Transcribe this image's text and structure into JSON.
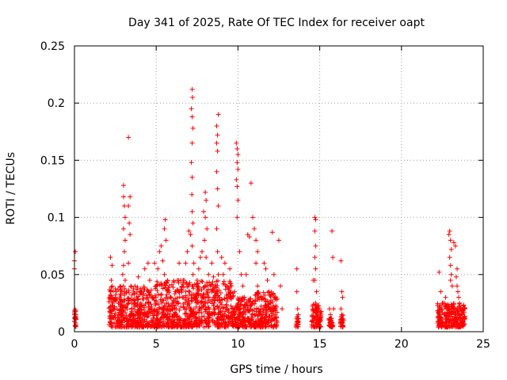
{
  "chart_data": {
    "type": "scatter",
    "title": "Day 341 of 2025, Rate Of TEC Index for receiver oapt",
    "xlabel": "GPS time / hours",
    "ylabel": "ROTI / TECUs",
    "xlim": [
      0,
      25
    ],
    "ylim": [
      0,
      0.25
    ],
    "x_ticks": [
      0,
      5,
      10,
      15,
      20,
      25
    ],
    "x_tick_labels": [
      "0",
      "5",
      "10",
      "15",
      "20",
      "25"
    ],
    "y_ticks": [
      0,
      0.05,
      0.1,
      0.15,
      0.2,
      0.25
    ],
    "y_tick_labels": [
      "0",
      "0.05",
      "0.1",
      "0.15",
      "0.2",
      "0.25"
    ],
    "grid": true,
    "marker": "+",
    "series": [
      {
        "color": "#ff0000",
        "points": [
          [
            0.0,
            0.062
          ],
          [
            0.0,
            0.055
          ],
          [
            0.05,
            0.07
          ],
          [
            0.0,
            0.012
          ],
          [
            0.0,
            0.015
          ],
          [
            0.05,
            0.018
          ],
          [
            0.0,
            0.009
          ],
          [
            0.05,
            0.011
          ],
          [
            2.2,
            0.065
          ],
          [
            2.3,
            0.058
          ],
          [
            2.25,
            0.045
          ],
          [
            2.2,
            0.035
          ],
          [
            2.3,
            0.025
          ],
          [
            2.25,
            0.018
          ],
          [
            2.35,
            0.012
          ],
          [
            2.2,
            0.008
          ],
          [
            2.5,
            0.03
          ],
          [
            2.6,
            0.02
          ],
          [
            2.7,
            0.015
          ],
          [
            2.8,
            0.022
          ],
          [
            2.9,
            0.035
          ],
          [
            2.95,
            0.05
          ],
          [
            3.0,
            0.128
          ],
          [
            3.0,
            0.118
          ],
          [
            3.05,
            0.11
          ],
          [
            3.1,
            0.1
          ],
          [
            3.0,
            0.09
          ],
          [
            3.1,
            0.08
          ],
          [
            3.05,
            0.07
          ],
          [
            3.0,
            0.058
          ],
          [
            3.1,
            0.045
          ],
          [
            3.05,
            0.032
          ],
          [
            3.0,
            0.02
          ],
          [
            3.1,
            0.012
          ],
          [
            3.3,
            0.17
          ],
          [
            3.4,
            0.118
          ],
          [
            3.3,
            0.11
          ],
          [
            3.35,
            0.095
          ],
          [
            3.4,
            0.085
          ],
          [
            3.3,
            0.06
          ],
          [
            3.45,
            0.04
          ],
          [
            3.5,
            0.025
          ],
          [
            3.4,
            0.015
          ],
          [
            3.7,
            0.04
          ],
          [
            3.8,
            0.03
          ],
          [
            3.9,
            0.048
          ],
          [
            4.0,
            0.02
          ],
          [
            4.1,
            0.035
          ],
          [
            4.2,
            0.015
          ],
          [
            4.3,
            0.055
          ],
          [
            4.4,
            0.03
          ],
          [
            4.5,
            0.06
          ],
          [
            4.6,
            0.045
          ],
          [
            4.7,
            0.02
          ],
          [
            4.8,
            0.012
          ],
          [
            4.9,
            0.06
          ],
          [
            5.0,
            0.04
          ],
          [
            5.1,
            0.055
          ],
          [
            5.2,
            0.07
          ],
          [
            5.3,
            0.075
          ],
          [
            5.4,
            0.062
          ],
          [
            5.5,
            0.09
          ],
          [
            5.55,
            0.098
          ],
          [
            5.6,
            0.08
          ],
          [
            5.5,
            0.05
          ],
          [
            5.6,
            0.03
          ],
          [
            5.7,
            0.02
          ],
          [
            5.45,
            0.015
          ],
          [
            5.8,
            0.04
          ],
          [
            5.9,
            0.03
          ],
          [
            6.0,
            0.025
          ],
          [
            6.1,
            0.015
          ],
          [
            6.2,
            0.035
          ],
          [
            6.3,
            0.045
          ],
          [
            6.4,
            0.06
          ],
          [
            6.5,
            0.045
          ],
          [
            6.6,
            0.03
          ],
          [
            6.7,
            0.045
          ],
          [
            6.8,
            0.06
          ],
          [
            6.9,
            0.07
          ],
          [
            7.0,
            0.088
          ],
          [
            7.1,
            0.085
          ],
          [
            7.2,
            0.212
          ],
          [
            7.22,
            0.205
          ],
          [
            7.15,
            0.195
          ],
          [
            7.2,
            0.188
          ],
          [
            7.25,
            0.178
          ],
          [
            7.2,
            0.165
          ],
          [
            7.15,
            0.148
          ],
          [
            7.2,
            0.135
          ],
          [
            7.18,
            0.12
          ],
          [
            7.2,
            0.105
          ],
          [
            7.25,
            0.095
          ],
          [
            7.2,
            0.075
          ],
          [
            7.3,
            0.06
          ],
          [
            7.25,
            0.05
          ],
          [
            7.2,
            0.04
          ],
          [
            7.35,
            0.03
          ],
          [
            7.3,
            0.02
          ],
          [
            7.4,
            0.012
          ],
          [
            7.5,
            0.045
          ],
          [
            7.6,
            0.055
          ],
          [
            7.7,
            0.065
          ],
          [
            7.8,
            0.07
          ],
          [
            7.9,
            0.105
          ],
          [
            8.0,
            0.122
          ],
          [
            8.05,
            0.115
          ],
          [
            8.0,
            0.1
          ],
          [
            8.1,
            0.09
          ],
          [
            7.95,
            0.08
          ],
          [
            8.05,
            0.065
          ],
          [
            8.2,
            0.05
          ],
          [
            8.3,
            0.04
          ],
          [
            8.4,
            0.06
          ],
          [
            8.5,
            0.048
          ],
          [
            8.55,
            0.03
          ],
          [
            8.6,
            0.02
          ],
          [
            8.7,
            0.18
          ],
          [
            8.75,
            0.172
          ],
          [
            8.7,
            0.165
          ],
          [
            8.8,
            0.19
          ],
          [
            8.75,
            0.158
          ],
          [
            8.7,
            0.14
          ],
          [
            8.75,
            0.125
          ],
          [
            8.8,
            0.11
          ],
          [
            8.7,
            0.09
          ],
          [
            8.75,
            0.07
          ],
          [
            8.8,
            0.05
          ],
          [
            8.7,
            0.035
          ],
          [
            8.8,
            0.02
          ],
          [
            9.0,
            0.065
          ],
          [
            9.1,
            0.05
          ],
          [
            9.2,
            0.06
          ],
          [
            9.3,
            0.04
          ],
          [
            9.4,
            0.03
          ],
          [
            9.5,
            0.055
          ],
          [
            9.6,
            0.04
          ],
          [
            9.7,
            0.02
          ],
          [
            9.75,
            0.015
          ],
          [
            9.9,
            0.165
          ],
          [
            9.95,
            0.16
          ],
          [
            10.0,
            0.155
          ],
          [
            9.95,
            0.148
          ],
          [
            10.0,
            0.142
          ],
          [
            9.9,
            0.133
          ],
          [
            9.95,
            0.127
          ],
          [
            10.0,
            0.115
          ],
          [
            9.95,
            0.1
          ],
          [
            10.1,
            0.07
          ],
          [
            10.2,
            0.05
          ],
          [
            10.3,
            0.04
          ],
          [
            10.4,
            0.03
          ],
          [
            10.5,
            0.05
          ],
          [
            10.6,
            0.085
          ],
          [
            10.7,
            0.083
          ],
          [
            10.8,
            0.13
          ],
          [
            10.9,
            0.1
          ],
          [
            11.0,
            0.09
          ],
          [
            11.1,
            0.08
          ],
          [
            11.2,
            0.07
          ],
          [
            11.1,
            0.06
          ],
          [
            11.2,
            0.04
          ],
          [
            11.3,
            0.03
          ],
          [
            11.4,
            0.02
          ],
          [
            11.5,
            0.012
          ],
          [
            11.6,
            0.06
          ],
          [
            11.7,
            0.055
          ],
          [
            11.8,
            0.045
          ],
          [
            11.9,
            0.035
          ],
          [
            12.0,
            0.025
          ],
          [
            12.1,
            0.087
          ],
          [
            12.2,
            0.05
          ],
          [
            12.25,
            0.03
          ],
          [
            12.3,
            0.02
          ],
          [
            12.35,
            0.012
          ],
          [
            12.5,
            0.08
          ],
          [
            12.6,
            0.04
          ],
          [
            12.7,
            0.02
          ],
          [
            13.6,
            0.055
          ],
          [
            13.6,
            0.035
          ],
          [
            13.65,
            0.02
          ],
          [
            13.6,
            0.012
          ],
          [
            13.65,
            0.008
          ],
          [
            14.6,
            0.045
          ],
          [
            14.7,
            0.1
          ],
          [
            14.75,
            0.098
          ],
          [
            14.7,
            0.088
          ],
          [
            14.75,
            0.075
          ],
          [
            14.7,
            0.065
          ],
          [
            14.75,
            0.055
          ],
          [
            14.7,
            0.045
          ],
          [
            14.8,
            0.035
          ],
          [
            14.75,
            0.025
          ],
          [
            14.85,
            0.02
          ],
          [
            14.9,
            0.015
          ],
          [
            15.0,
            0.012
          ],
          [
            15.05,
            0.01
          ],
          [
            15.6,
            0.02
          ],
          [
            15.65,
            0.015
          ],
          [
            15.7,
            0.01
          ],
          [
            15.75,
            0.088
          ],
          [
            15.8,
            0.065
          ],
          [
            15.85,
            0.02
          ],
          [
            16.3,
            0.062
          ],
          [
            16.35,
            0.035
          ],
          [
            16.4,
            0.03
          ],
          [
            16.3,
            0.02
          ],
          [
            16.35,
            0.015
          ],
          [
            16.4,
            0.01
          ],
          [
            22.3,
            0.052
          ],
          [
            22.4,
            0.035
          ],
          [
            22.5,
            0.025
          ],
          [
            22.6,
            0.015
          ],
          [
            22.7,
            0.03
          ],
          [
            22.8,
            0.02
          ],
          [
            22.9,
            0.085
          ],
          [
            22.95,
            0.088
          ],
          [
            23.0,
            0.08
          ],
          [
            23.05,
            0.072
          ],
          [
            22.95,
            0.065
          ],
          [
            23.0,
            0.058
          ],
          [
            23.05,
            0.05
          ],
          [
            23.0,
            0.045
          ],
          [
            23.1,
            0.04
          ],
          [
            23.2,
            0.078
          ],
          [
            23.3,
            0.075
          ],
          [
            23.4,
            0.055
          ],
          [
            23.35,
            0.048
          ],
          [
            23.4,
            0.04
          ],
          [
            23.45,
            0.035
          ],
          [
            23.5,
            0.03
          ],
          [
            23.55,
            0.025
          ],
          [
            23.6,
            0.02
          ],
          [
            23.7,
            0.015
          ],
          [
            23.8,
            0.012
          ]
        ]
      }
    ],
    "density_bands": [
      {
        "x": [
          0.0,
          0.1
        ],
        "ymax": 0.02
      },
      {
        "x": [
          2.1,
          5.0
        ],
        "ymax": 0.04
      },
      {
        "x": [
          5.0,
          7.0
        ],
        "ymax": 0.045
      },
      {
        "x": [
          7.0,
          9.8
        ],
        "ymax": 0.045
      },
      {
        "x": [
          9.8,
          11.0
        ],
        "ymax": 0.03
      },
      {
        "x": [
          11.0,
          12.4
        ],
        "ymax": 0.035
      },
      {
        "x": [
          13.55,
          13.7
        ],
        "ymax": 0.015
      },
      {
        "x": [
          14.5,
          15.1
        ],
        "ymax": 0.025
      },
      {
        "x": [
          15.55,
          15.8
        ],
        "ymax": 0.012
      },
      {
        "x": [
          16.25,
          16.45
        ],
        "ymax": 0.015
      },
      {
        "x": [
          22.2,
          23.9
        ],
        "ymax": 0.025
      }
    ]
  }
}
